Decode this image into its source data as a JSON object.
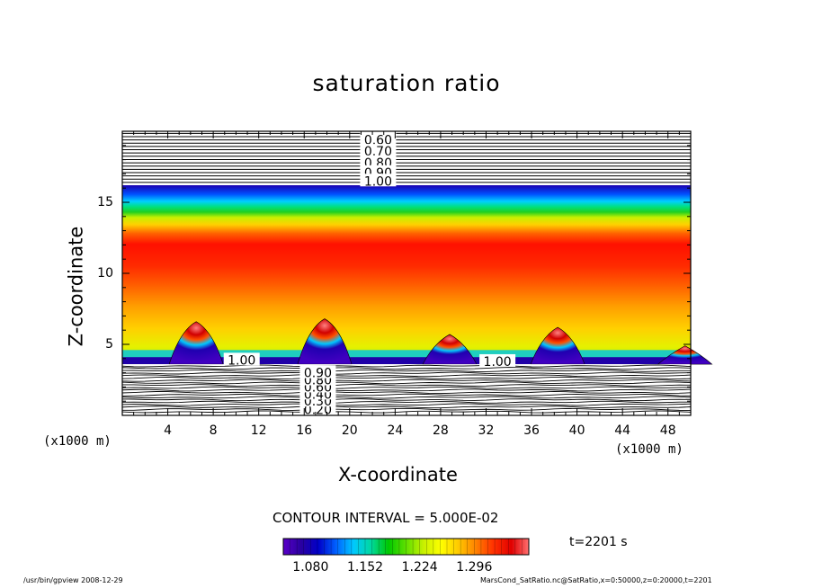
{
  "chart_data": {
    "type": "heatmap",
    "title": "saturation ratio",
    "xlabel": "X-coordinate",
    "ylabel": "Z-coordinate",
    "x_unit_label": "(x1000 m)",
    "x_unit_label_secondary": "(x1000 m)",
    "xlim": [
      0,
      50
    ],
    "ylim": [
      0,
      20
    ],
    "x_ticks": [
      "4",
      "8",
      "12",
      "16",
      "20",
      "24",
      "28",
      "32",
      "36",
      "40",
      "44",
      "48"
    ],
    "x_tick_values": [
      4,
      8,
      12,
      16,
      20,
      24,
      28,
      32,
      36,
      40,
      44,
      48
    ],
    "y_ticks": [
      "5",
      "10",
      "15"
    ],
    "y_tick_values": [
      5,
      10,
      15
    ],
    "contour_labels_upper": [
      "0.60",
      "0.70",
      "0.80",
      "0.90",
      "1.00"
    ],
    "contour_labels_upper_z": [
      19.4,
      18.6,
      17.8,
      17.1,
      16.5
    ],
    "contour_labels_lower": [
      "0.20",
      "0.30",
      "0.40",
      "0.60",
      "0.80",
      "0.90"
    ],
    "contour_labels_lower_z": [
      0.4,
      1.0,
      1.5,
      2.0,
      2.5,
      3.0
    ],
    "contour_labels_mid": [
      {
        "text": "1.00",
        "x": 10.5,
        "z": 3.9
      },
      {
        "text": "1.00",
        "x": 33.0,
        "z": 3.8
      }
    ],
    "plumes_x": [
      6.5,
      17.8,
      28.8,
      38.3,
      49.5
    ],
    "plumes_height": [
      6.6,
      6.8,
      5.7,
      6.2,
      4.9
    ],
    "contour_interval": "CONTOUR INTERVAL = 5.000E-02",
    "colorbar": {
      "ticks": [
        "1.080",
        "1.152",
        "1.224",
        "1.296"
      ],
      "min": 1.044,
      "max": 1.368,
      "colormap": [
        "#5a00c8",
        "#2a00a0",
        "#0000c8",
        "#0060ff",
        "#00c8ff",
        "#00d8a0",
        "#00c800",
        "#60e000",
        "#c8f000",
        "#ffff00",
        "#ffc800",
        "#ff8000",
        "#ff3000",
        "#e00000",
        "#ff7070"
      ]
    },
    "time_label": "t=2201 s"
  },
  "footer": {
    "left": "/usr/bin/gpview   2008-12-29",
    "right": "MarsCond_SatRatio.nc@SatRatio,x=0:50000,z=0:20000,t=2201"
  }
}
